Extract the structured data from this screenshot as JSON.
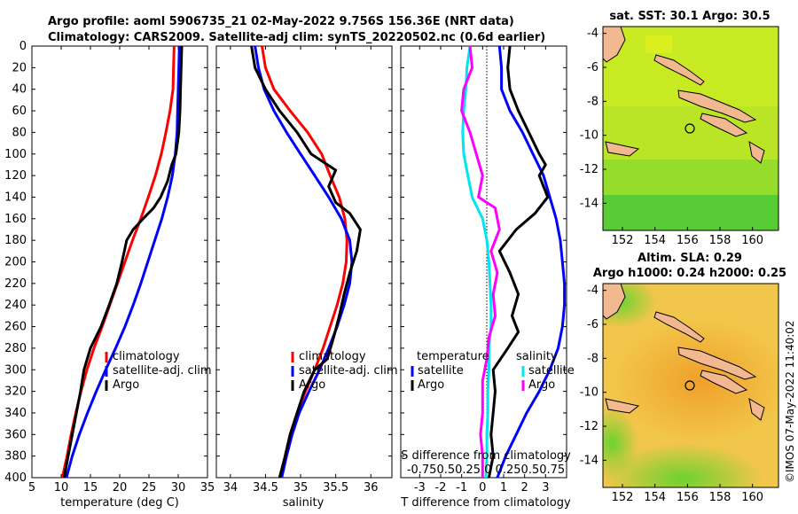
{
  "title_line1": "Argo profile: aoml 5906735_21 02-May-2022 9.756S 156.36E (NRT data)",
  "title_line2": "Climatology: CARS2009. Satellite-adj clim: synTS_20220502.nc (0.6d earlier)",
  "copyright": "©IMOS 07-May-2022 11:40:02",
  "colors": {
    "climatology": "#ff0000",
    "satellite": "#0000ff",
    "argo": "#000000",
    "sat_salinity": "#00e5ee",
    "clim_salinity": "#ff00ff"
  },
  "panel_temperature": {
    "xlabel": "temperature (deg C)",
    "legend": [
      "climatology",
      "satellite-adj. clim",
      "Argo"
    ]
  },
  "panel_salinity": {
    "xlabel": "salinity",
    "legend": [
      "climatology",
      "satellite-adj. clim",
      "Argo"
    ]
  },
  "panel_difference": {
    "xlabel": "T difference from climatology",
    "s_label": "S difference from climatology",
    "s_ticks": "-0.750.50.25 0 0.250.50.75",
    "legend_left_title": "temperature",
    "legend_right_title": "salinity",
    "legend_left": [
      "satellite",
      "Argo"
    ],
    "legend_right": [
      "satellite",
      "Argo"
    ]
  },
  "map_sst": {
    "title": "sat. SST: 30.1 Argo: 30.5"
  },
  "map_sla": {
    "title1": "Altim. SLA: 0.29",
    "title2": "Argo h1000: 0.24 h2000: 0.25"
  },
  "chart_data": [
    {
      "type": "line",
      "name": "temperature profile",
      "xlabel": "temperature (deg C)",
      "ylabel": "depth",
      "xlim": [
        5,
        35
      ],
      "ylim": [
        400,
        0
      ],
      "xticks": [
        5,
        10,
        15,
        20,
        25,
        30,
        35
      ],
      "yticks": [
        0,
        20,
        40,
        60,
        80,
        100,
        120,
        140,
        160,
        180,
        200,
        220,
        240,
        260,
        280,
        300,
        320,
        340,
        360,
        380,
        400
      ],
      "series": [
        {
          "name": "climatology",
          "color": "#ff0000",
          "points": [
            [
              29.3,
              0
            ],
            [
              29.2,
              20
            ],
            [
              29.1,
              40
            ],
            [
              28.6,
              60
            ],
            [
              27.9,
              80
            ],
            [
              27.1,
              100
            ],
            [
              26.1,
              120
            ],
            [
              24.9,
              140
            ],
            [
              23.6,
              160
            ],
            [
              22.2,
              180
            ],
            [
              20.9,
              200
            ],
            [
              19.6,
              220
            ],
            [
              18.3,
              240
            ],
            [
              17.0,
              260
            ],
            [
              15.6,
              280
            ],
            [
              14.4,
              300
            ],
            [
              13.4,
              320
            ],
            [
              12.5,
              340
            ],
            [
              11.7,
              360
            ],
            [
              11.0,
              380
            ],
            [
              10.2,
              400
            ]
          ]
        },
        {
          "name": "satellite-adj. clim",
          "color": "#0000ff",
          "points": [
            [
              30.2,
              0
            ],
            [
              30.1,
              20
            ],
            [
              30.0,
              40
            ],
            [
              29.9,
              60
            ],
            [
              29.8,
              80
            ],
            [
              29.5,
              100
            ],
            [
              29.0,
              120
            ],
            [
              28.2,
              140
            ],
            [
              27.2,
              160
            ],
            [
              26.0,
              180
            ],
            [
              24.8,
              200
            ],
            [
              23.6,
              220
            ],
            [
              22.3,
              240
            ],
            [
              20.9,
              260
            ],
            [
              19.3,
              280
            ],
            [
              17.6,
              300
            ],
            [
              16.0,
              320
            ],
            [
              14.5,
              340
            ],
            [
              13.1,
              360
            ],
            [
              11.9,
              380
            ],
            [
              10.9,
              400
            ]
          ]
        },
        {
          "name": "Argo",
          "color": "#000000",
          "points": [
            [
              30.6,
              0
            ],
            [
              30.5,
              20
            ],
            [
              30.4,
              40
            ],
            [
              30.3,
              60
            ],
            [
              30.1,
              80
            ],
            [
              29.6,
              100
            ],
            [
              28.9,
              110
            ],
            [
              28.2,
              125
            ],
            [
              27.0,
              140
            ],
            [
              25.8,
              150
            ],
            [
              24.0,
              160
            ],
            [
              22.3,
              170
            ],
            [
              21.2,
              180
            ],
            [
              20.4,
              200
            ],
            [
              19.5,
              220
            ],
            [
              18.2,
              240
            ],
            [
              16.8,
              260
            ],
            [
              15.0,
              280
            ],
            [
              13.9,
              300
            ],
            [
              13.3,
              320
            ],
            [
              12.6,
              340
            ],
            [
              11.9,
              360
            ],
            [
              11.2,
              380
            ],
            [
              10.5,
              400
            ]
          ]
        }
      ]
    },
    {
      "type": "line",
      "name": "salinity profile",
      "xlabel": "salinity",
      "ylabel": "depth",
      "xlim": [
        33.8,
        36.3
      ],
      "ylim": [
        400,
        0
      ],
      "xticks": [
        34,
        34.5,
        35,
        35.5,
        36
      ],
      "series": [
        {
          "name": "climatology",
          "color": "#ff0000",
          "points": [
            [
              34.45,
              0
            ],
            [
              34.5,
              20
            ],
            [
              34.62,
              40
            ],
            [
              34.85,
              60
            ],
            [
              35.1,
              80
            ],
            [
              35.3,
              100
            ],
            [
              35.42,
              120
            ],
            [
              35.55,
              140
            ],
            [
              35.63,
              160
            ],
            [
              35.66,
              180
            ],
            [
              35.65,
              200
            ],
            [
              35.6,
              220
            ],
            [
              35.52,
              240
            ],
            [
              35.42,
              260
            ],
            [
              35.32,
              280
            ],
            [
              35.2,
              300
            ],
            [
              35.07,
              320
            ],
            [
              34.95,
              340
            ],
            [
              34.85,
              360
            ],
            [
              34.78,
              380
            ],
            [
              34.72,
              400
            ]
          ]
        },
        {
          "name": "satellite-adj. clim",
          "color": "#0000ff",
          "points": [
            [
              34.35,
              0
            ],
            [
              34.4,
              20
            ],
            [
              34.48,
              40
            ],
            [
              34.62,
              60
            ],
            [
              34.8,
              80
            ],
            [
              35.0,
              100
            ],
            [
              35.2,
              120
            ],
            [
              35.4,
              140
            ],
            [
              35.58,
              160
            ],
            [
              35.7,
              180
            ],
            [
              35.73,
              200
            ],
            [
              35.7,
              220
            ],
            [
              35.62,
              240
            ],
            [
              35.52,
              260
            ],
            [
              35.4,
              280
            ],
            [
              35.27,
              300
            ],
            [
              35.12,
              320
            ],
            [
              34.98,
              340
            ],
            [
              34.88,
              360
            ],
            [
              34.8,
              380
            ],
            [
              34.73,
              400
            ]
          ]
        },
        {
          "name": "Argo",
          "color": "#000000",
          "points": [
            [
              34.3,
              0
            ],
            [
              34.35,
              20
            ],
            [
              34.5,
              40
            ],
            [
              34.7,
              60
            ],
            [
              34.95,
              80
            ],
            [
              35.15,
              100
            ],
            [
              35.5,
              115
            ],
            [
              35.4,
              130
            ],
            [
              35.5,
              145
            ],
            [
              35.7,
              155
            ],
            [
              35.85,
              170
            ],
            [
              35.8,
              190
            ],
            [
              35.7,
              210
            ],
            [
              35.62,
              230
            ],
            [
              35.55,
              250
            ],
            [
              35.47,
              270
            ],
            [
              35.38,
              290
            ],
            [
              35.2,
              300
            ],
            [
              35.05,
              320
            ],
            [
              34.95,
              340
            ],
            [
              34.85,
              360
            ],
            [
              34.78,
              380
            ],
            [
              34.7,
              400
            ]
          ]
        }
      ]
    },
    {
      "type": "line",
      "name": "difference from climatology",
      "xlabel": "T difference from climatology",
      "ylabel": "depth",
      "xlim": [
        -3.9,
        4.0
      ],
      "ylim": [
        400,
        0
      ],
      "xticks": [
        -3,
        -2,
        -1,
        0,
        1,
        2,
        3
      ],
      "series": [
        {
          "name": "temperature satellite",
          "color": "#0000ff",
          "points": [
            [
              0.8,
              0
            ],
            [
              0.9,
              20
            ],
            [
              0.9,
              40
            ],
            [
              1.3,
              60
            ],
            [
              1.9,
              80
            ],
            [
              2.4,
              100
            ],
            [
              2.9,
              120
            ],
            [
              3.2,
              140
            ],
            [
              3.5,
              160
            ],
            [
              3.7,
              180
            ],
            [
              3.8,
              200
            ],
            [
              3.9,
              220
            ],
            [
              3.9,
              240
            ],
            [
              3.8,
              260
            ],
            [
              3.6,
              280
            ],
            [
              3.2,
              300
            ],
            [
              2.7,
              320
            ],
            [
              2.1,
              340
            ],
            [
              1.6,
              360
            ],
            [
              1.1,
              380
            ],
            [
              0.7,
              400
            ]
          ]
        },
        {
          "name": "temperature Argo",
          "color": "#000000",
          "points": [
            [
              1.3,
              0
            ],
            [
              1.2,
              20
            ],
            [
              1.3,
              40
            ],
            [
              1.7,
              60
            ],
            [
              2.2,
              80
            ],
            [
              2.7,
              100
            ],
            [
              3.0,
              110
            ],
            [
              2.7,
              120
            ],
            [
              3.1,
              140
            ],
            [
              2.5,
              155
            ],
            [
              1.6,
              170
            ],
            [
              0.8,
              190
            ],
            [
              1.3,
              210
            ],
            [
              1.7,
              230
            ],
            [
              1.4,
              250
            ],
            [
              1.7,
              265
            ],
            [
              1.2,
              280
            ],
            [
              0.5,
              300
            ],
            [
              0.6,
              320
            ],
            [
              0.5,
              340
            ],
            [
              0.4,
              360
            ],
            [
              0.5,
              380
            ],
            [
              0.3,
              400
            ]
          ]
        },
        {
          "name": "salinity satellite",
          "color": "#00e5ee",
          "points": [
            [
              -0.6,
              0
            ],
            [
              -0.75,
              20
            ],
            [
              -0.8,
              40
            ],
            [
              -0.9,
              60
            ],
            [
              -0.95,
              80
            ],
            [
              -0.9,
              100
            ],
            [
              -0.7,
              120
            ],
            [
              -0.5,
              140
            ],
            [
              0.0,
              160
            ],
            [
              0.2,
              180
            ],
            [
              0.3,
              200
            ],
            [
              0.35,
              220
            ],
            [
              0.4,
              240
            ],
            [
              0.4,
              260
            ],
            [
              0.3,
              280
            ],
            [
              0.3,
              300
            ],
            [
              0.25,
              320
            ],
            [
              0.25,
              340
            ],
            [
              0.2,
              360
            ],
            [
              0.2,
              380
            ],
            [
              0.15,
              400
            ]
          ]
        },
        {
          "name": "salinity Argo",
          "color": "#ff00ff",
          "points": [
            [
              -0.6,
              0
            ],
            [
              -0.5,
              20
            ],
            [
              -0.9,
              40
            ],
            [
              -1.0,
              60
            ],
            [
              -0.6,
              80
            ],
            [
              -0.3,
              100
            ],
            [
              0.0,
              120
            ],
            [
              -0.2,
              140
            ],
            [
              0.6,
              150
            ],
            [
              0.8,
              170
            ],
            [
              0.4,
              190
            ],
            [
              0.7,
              210
            ],
            [
              0.5,
              230
            ],
            [
              0.6,
              250
            ],
            [
              0.3,
              270
            ],
            [
              0.2,
              290
            ],
            [
              0.0,
              310
            ],
            [
              0.0,
              340
            ],
            [
              -0.1,
              360
            ],
            [
              0.0,
              380
            ],
            [
              0.0,
              400
            ]
          ]
        }
      ]
    },
    {
      "type": "heatmap",
      "name": "sat. SST map",
      "title": "sat. SST: 30.1 Argo: 30.5",
      "xlim": [
        150.8,
        161.6
      ],
      "ylim": [
        -15.6,
        -3.6
      ],
      "xticks": [
        152,
        154,
        156,
        158,
        160
      ],
      "yticks": [
        -4,
        -6,
        -8,
        -10,
        -12,
        -14
      ],
      "argo_location": [
        156.36,
        -9.756
      ]
    },
    {
      "type": "heatmap",
      "name": "altimetry SLA map",
      "title": "Altim. SLA: 0.29 / Argo h1000: 0.24 h2000: 0.25",
      "xlim": [
        150.8,
        161.6
      ],
      "ylim": [
        -15.6,
        -3.6
      ],
      "xticks": [
        152,
        154,
        156,
        158,
        160
      ],
      "yticks": [
        -4,
        -6,
        -8,
        -10,
        -12,
        -14
      ],
      "argo_location": [
        156.36,
        -9.756
      ]
    }
  ]
}
